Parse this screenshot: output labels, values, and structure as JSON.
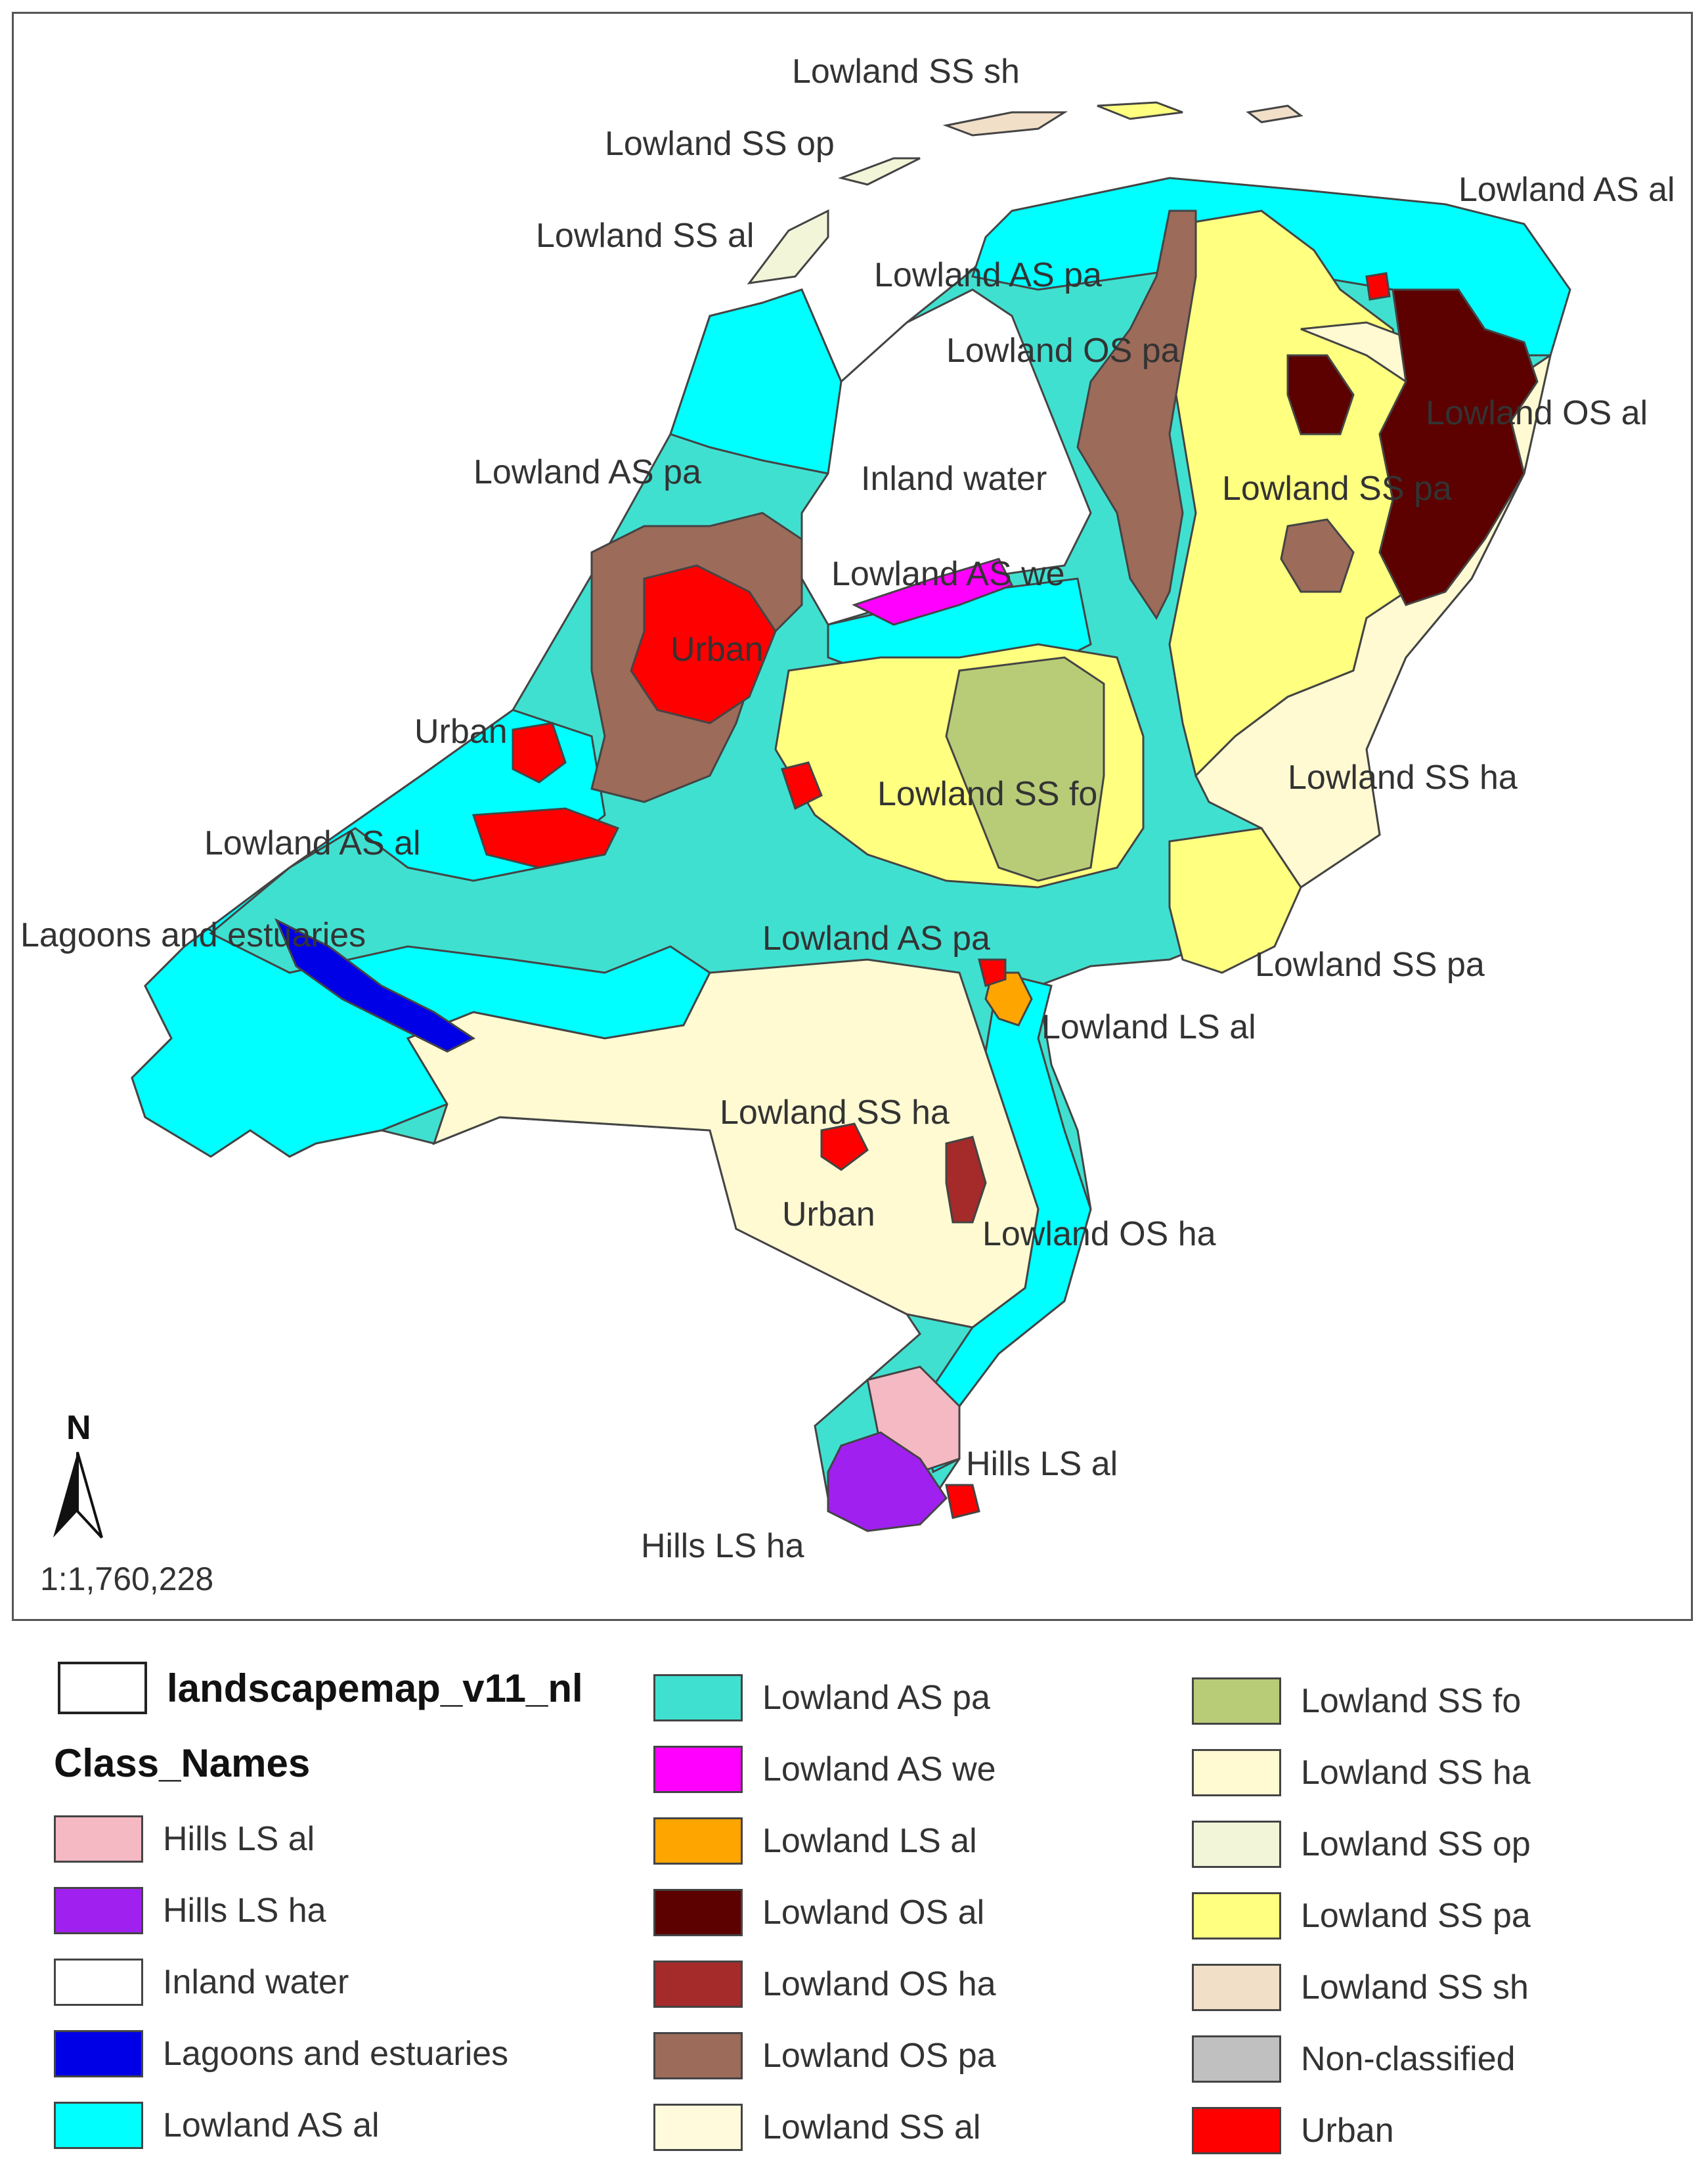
{
  "map": {
    "scale": "1:1,760,228",
    "north_label": "N",
    "labels": [
      "Lowland SS sh",
      "Lowland SS op",
      "Lowland AS al",
      "Lowland SS al",
      "Lowland AS pa",
      "Lowland OS pa",
      "Lowland OS al",
      "Lowland AS pa",
      "Inland water",
      "Lowland SS pa",
      "Lowland AS we",
      "Urban",
      "Urban",
      "Lowland SS ha",
      "Lowland SS fo",
      "Lowland AS al",
      "Lagoons and estuaries",
      "Lowland AS pa",
      "Lowland SS pa",
      "Lowland LS al",
      "Lowland SS ha",
      "Urban",
      "Lowland OS ha",
      "Hills LS al",
      "Hills LS ha"
    ]
  },
  "legend": {
    "layer_name": "landscapemap_v11_nl",
    "field_title": "Class_Names",
    "classes": [
      {
        "label": "Hills LS al",
        "color": "#f4b9c3"
      },
      {
        "label": "Hills LS ha",
        "color": "#a020f0"
      },
      {
        "label": "Inland water",
        "color": "#ffffff"
      },
      {
        "label": "Lagoons and estuaries",
        "color": "#0000e6"
      },
      {
        "label": "Lowland AS al",
        "color": "#00ffff"
      },
      {
        "label": "Lowland AS pa",
        "color": "#40e0d0"
      },
      {
        "label": "Lowland AS we",
        "color": "#ff00ff"
      },
      {
        "label": "Lowland LS al",
        "color": "#ffa500"
      },
      {
        "label": "Lowland OS al",
        "color": "#5c0000"
      },
      {
        "label": "Lowland OS ha",
        "color": "#a52a2a"
      },
      {
        "label": "Lowland OS pa",
        "color": "#9c6b5a"
      },
      {
        "label": "Lowland SS al",
        "color": "#fffadc"
      },
      {
        "label": "Lowland SS fo",
        "color": "#b8cc78"
      },
      {
        "label": "Lowland SS ha",
        "color": "#fffad2"
      },
      {
        "label": "Lowland SS op",
        "color": "#f2f5d8"
      },
      {
        "label": "Lowland SS pa",
        "color": "#ffff80"
      },
      {
        "label": "Lowland SS sh",
        "color": "#f2dfc8"
      },
      {
        "label": "Non-classified",
        "color": "#c0c0c0"
      },
      {
        "label": "Urban",
        "color": "#ff0000"
      }
    ]
  }
}
